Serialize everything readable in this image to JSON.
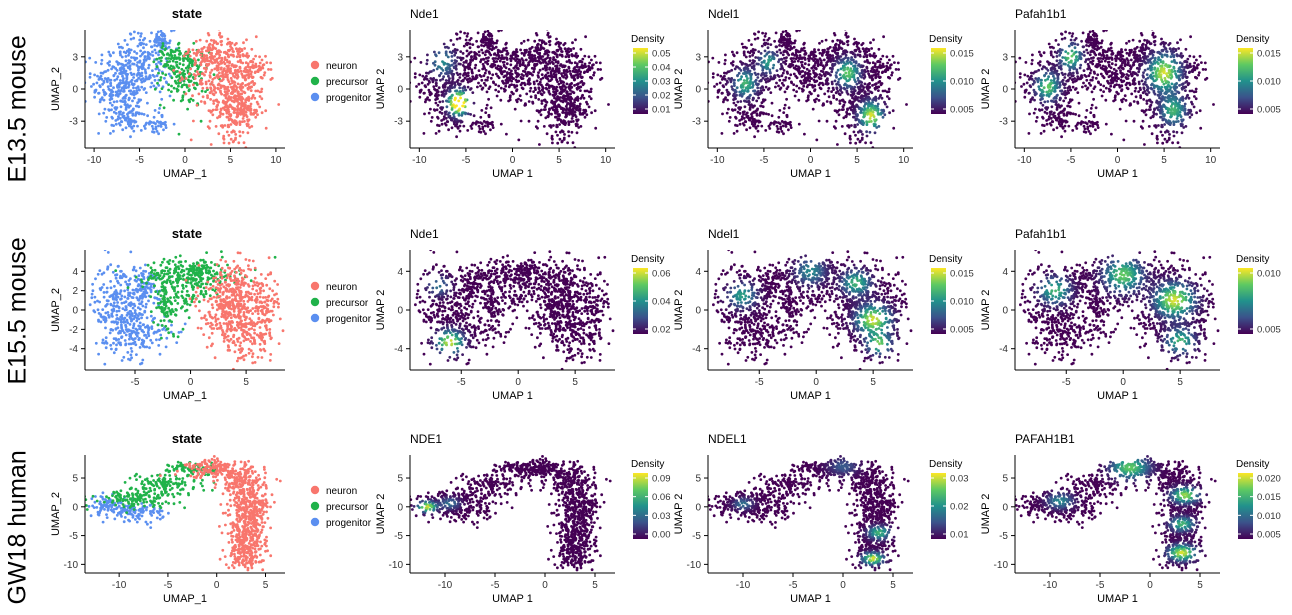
{
  "row_labels": [
    "E13.5 mouse",
    "E15.5 mouse",
    "GW18 human"
  ],
  "state_legend": [
    "neuron",
    "precursor",
    "progenitor"
  ],
  "state_colors": {
    "neuron": "#f8766d",
    "precursor": "#20b24a",
    "progenitor": "#5b8ff0"
  },
  "viridis": [
    "#440154",
    "#3b528b",
    "#21918c",
    "#5ec962",
    "#fde725"
  ],
  "chart_data": [
    {
      "type": "scatter",
      "row": 0,
      "col": 0,
      "kind": "state",
      "title": "state",
      "xlabel": "UMAP_1",
      "ylabel": "UMAP_2",
      "xlim": [
        -11,
        11
      ],
      "ylim": [
        -5.5,
        5.5
      ],
      "xticks": [
        "-10",
        "-5",
        "0",
        "5",
        "10"
      ],
      "yticks": [
        "3",
        "0",
        "-3"
      ],
      "legend": [
        "neuron",
        "precursor",
        "progenitor"
      ]
    },
    {
      "type": "scatter",
      "row": 0,
      "col": 1,
      "kind": "density",
      "title": "Nde1",
      "xlabel": "UMAP 1",
      "ylabel": "UMAP 2",
      "xlim": [
        -11,
        11
      ],
      "ylim": [
        -5.5,
        5.5
      ],
      "xticks": [
        "-10",
        "-5",
        "0",
        "5",
        "10"
      ],
      "yticks": [
        "3",
        "0",
        "-3"
      ],
      "legend_title": "Density",
      "legend_ticks": [
        "0.05",
        "0.04",
        "0.03",
        "0.02",
        "0.01"
      ]
    },
    {
      "type": "scatter",
      "row": 0,
      "col": 2,
      "kind": "density",
      "title": "Ndel1",
      "xlabel": "UMAP 1",
      "ylabel": "UMAP 2",
      "xlim": [
        -11,
        11
      ],
      "ylim": [
        -5.5,
        5.5
      ],
      "xticks": [
        "-10",
        "-5",
        "0",
        "5",
        "10"
      ],
      "yticks": [
        "3",
        "0",
        "-3"
      ],
      "legend_title": "Density",
      "legend_ticks": [
        "0.015",
        "0.010",
        "0.005"
      ]
    },
    {
      "type": "scatter",
      "row": 0,
      "col": 3,
      "kind": "density",
      "title": "Pafah1b1",
      "xlabel": "UMAP 1",
      "ylabel": "UMAP 2",
      "xlim": [
        -11,
        11
      ],
      "ylim": [
        -5.5,
        5.5
      ],
      "xticks": [
        "-10",
        "-5",
        "0",
        "5",
        "10"
      ],
      "yticks": [
        "3",
        "0",
        "-3"
      ],
      "legend_title": "Density",
      "legend_ticks": [
        "0.015",
        "0.010",
        "0.005"
      ]
    },
    {
      "type": "scatter",
      "row": 1,
      "col": 0,
      "kind": "state",
      "title": "state",
      "xlabel": "UMAP_1",
      "ylabel": "UMAP_2",
      "xlim": [
        -9.5,
        8.5
      ],
      "ylim": [
        -6.2,
        6.2
      ],
      "xticks": [
        "-5",
        "0",
        "5"
      ],
      "yticks": [
        "4",
        "2",
        "0",
        "-2",
        "-4"
      ],
      "legend": [
        "neuron",
        "precursor",
        "progenitor"
      ]
    },
    {
      "type": "scatter",
      "row": 1,
      "col": 1,
      "kind": "density",
      "title": "Nde1",
      "xlabel": "UMAP 1",
      "ylabel": "UMAP 2",
      "xlim": [
        -9.5,
        8.5
      ],
      "ylim": [
        -6.2,
        6.2
      ],
      "xticks": [
        "-5",
        "0",
        "5"
      ],
      "yticks": [
        "4",
        "0",
        "-4"
      ],
      "legend_title": "Density",
      "legend_ticks": [
        "0.06",
        "0.04",
        "0.02"
      ]
    },
    {
      "type": "scatter",
      "row": 1,
      "col": 2,
      "kind": "density",
      "title": "Ndel1",
      "xlabel": "UMAP 1",
      "ylabel": "UMAP 2",
      "xlim": [
        -9.5,
        8.5
      ],
      "ylim": [
        -6.2,
        6.2
      ],
      "xticks": [
        "-5",
        "0",
        "5"
      ],
      "yticks": [
        "4",
        "0",
        "-4"
      ],
      "legend_title": "Density",
      "legend_ticks": [
        "0.015",
        "0.010",
        "0.005"
      ]
    },
    {
      "type": "scatter",
      "row": 1,
      "col": 3,
      "kind": "density",
      "title": "Pafah1b1",
      "xlabel": "UMAP 1",
      "ylabel": "UMAP 2",
      "xlim": [
        -9.5,
        8.5
      ],
      "ylim": [
        -6.2,
        6.2
      ],
      "xticks": [
        "-5",
        "0",
        "5"
      ],
      "yticks": [
        "4",
        "0",
        "-4"
      ],
      "legend_title": "Density",
      "legend_ticks": [
        "0.010",
        "0.005"
      ]
    },
    {
      "type": "scatter",
      "row": 2,
      "col": 0,
      "kind": "state",
      "title": "state",
      "xlabel": "UMAP_1",
      "ylabel": "UMAP_2",
      "xlim": [
        -13.5,
        7
      ],
      "ylim": [
        -11.5,
        9
      ],
      "xticks": [
        "-10",
        "-5",
        "0",
        "5"
      ],
      "yticks": [
        "5",
        "0",
        "-5",
        "-10"
      ],
      "legend": [
        "neuron",
        "precursor",
        "progenitor"
      ]
    },
    {
      "type": "scatter",
      "row": 2,
      "col": 1,
      "kind": "density",
      "title": "NDE1",
      "xlabel": "UMAP 1",
      "ylabel": "UMAP 2",
      "xlim": [
        -13.5,
        7
      ],
      "ylim": [
        -11.5,
        9
      ],
      "xticks": [
        "-10",
        "-5",
        "0",
        "5"
      ],
      "yticks": [
        "5",
        "0",
        "-5",
        "-10"
      ],
      "legend_title": "Density",
      "legend_ticks": [
        "0.09",
        "0.06",
        "0.03",
        "0.00"
      ]
    },
    {
      "type": "scatter",
      "row": 2,
      "col": 2,
      "kind": "density",
      "title": "NDEL1",
      "xlabel": "UMAP 1",
      "ylabel": "UMAP 2",
      "xlim": [
        -13.5,
        7
      ],
      "ylim": [
        -11.5,
        9
      ],
      "xticks": [
        "-10",
        "-5",
        "0",
        "5"
      ],
      "yticks": [
        "5",
        "0",
        "-5",
        "-10"
      ],
      "legend_title": "Density",
      "legend_ticks": [
        "0.03",
        "0.02",
        "0.01"
      ]
    },
    {
      "type": "scatter",
      "row": 2,
      "col": 3,
      "kind": "density",
      "title": "PAFAH1B1",
      "xlabel": "UMAP 1",
      "ylabel": "UMAP 2",
      "xlim": [
        -13.5,
        7
      ],
      "ylim": [
        -11.5,
        9
      ],
      "xticks": [
        "-10",
        "-5",
        "0",
        "5"
      ],
      "yticks": [
        "5",
        "0",
        "-5",
        "-10"
      ],
      "legend_title": "Density",
      "legend_ticks": [
        "0.020",
        "0.015",
        "0.010",
        "0.005"
      ]
    }
  ]
}
